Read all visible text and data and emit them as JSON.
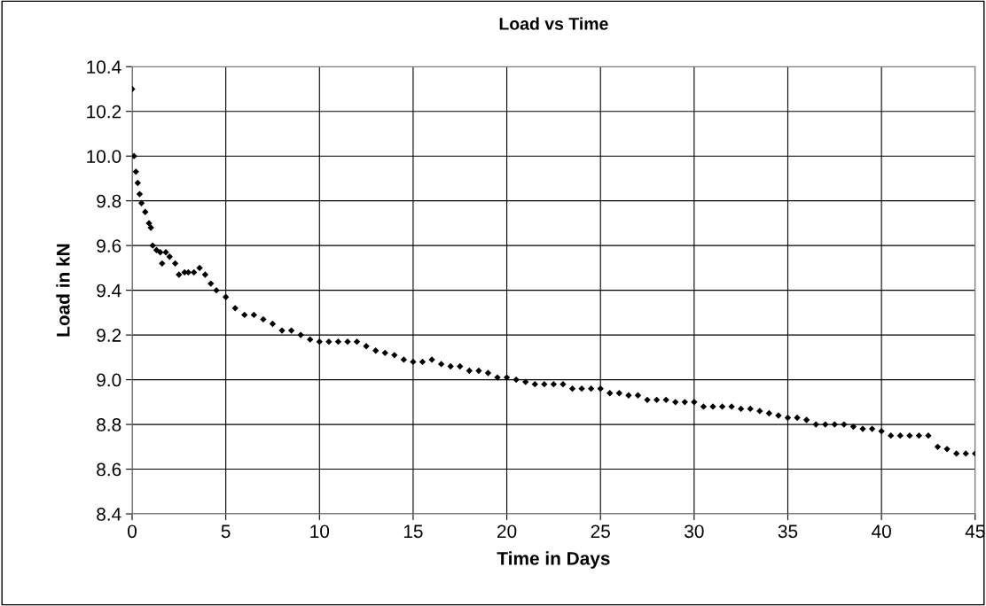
{
  "chart_data": {
    "type": "scatter",
    "title": "Load vs Time",
    "xlabel": "Time in Days",
    "ylabel": "Load in kN",
    "x": [
      0,
      0.1,
      0.2,
      0.3,
      0.4,
      0.5,
      0.7,
      0.9,
      1.0,
      1.1,
      1.3,
      1.5,
      1.6,
      1.8,
      2.0,
      2.3,
      2.5,
      2.8,
      3.0,
      3.3,
      3.6,
      3.9,
      4.2,
      4.5,
      5.0,
      5.5,
      6.0,
      6.5,
      7.0,
      7.5,
      8.0,
      8.5,
      9.0,
      9.5,
      10,
      10.5,
      11,
      11.5,
      12,
      12.5,
      13,
      13.5,
      14,
      14.5,
      15,
      15.5,
      16,
      16.5,
      17,
      17.5,
      18,
      18.5,
      19,
      19.5,
      20,
      20.5,
      21,
      21.5,
      22,
      22.5,
      23,
      23.5,
      24,
      24.5,
      25,
      25.5,
      26,
      26.5,
      27,
      27.5,
      28,
      28.5,
      29,
      29.5,
      30,
      30.5,
      31,
      31.5,
      32,
      32.5,
      33,
      33.5,
      34,
      34.5,
      35,
      35.5,
      36,
      36.5,
      37,
      37.5,
      38,
      38.5,
      39,
      39.5,
      40,
      40.5,
      41,
      41.5,
      42,
      42.5,
      43,
      43.5,
      44,
      44.5,
      45
    ],
    "series": [
      {
        "color": "#000000",
        "values": [
          10.3,
          10.0,
          9.93,
          9.88,
          9.83,
          9.79,
          9.75,
          9.7,
          9.68,
          9.6,
          9.58,
          9.57,
          9.52,
          9.57,
          9.55,
          9.52,
          9.47,
          9.48,
          9.48,
          9.48,
          9.5,
          9.47,
          9.43,
          9.4,
          9.37,
          9.32,
          9.29,
          9.29,
          9.27,
          9.25,
          9.22,
          9.22,
          9.2,
          9.18,
          9.17,
          9.17,
          9.17,
          9.17,
          9.17,
          9.15,
          9.13,
          9.12,
          9.11,
          9.09,
          9.08,
          9.08,
          9.09,
          9.07,
          9.06,
          9.06,
          9.04,
          9.04,
          9.03,
          9.01,
          9.01,
          9.0,
          8.99,
          8.98,
          8.98,
          8.98,
          8.98,
          8.96,
          8.96,
          8.96,
          8.96,
          8.94,
          8.94,
          8.93,
          8.93,
          8.91,
          8.91,
          8.91,
          8.9,
          8.9,
          8.9,
          8.88,
          8.88,
          8.88,
          8.88,
          8.87,
          8.87,
          8.86,
          8.85,
          8.84,
          8.83,
          8.83,
          8.82,
          8.8,
          8.8,
          8.8,
          8.8,
          8.79,
          8.78,
          8.78,
          8.77,
          8.75,
          8.75,
          8.75,
          8.75,
          8.75,
          8.7,
          8.69,
          8.67,
          8.67,
          8.67
        ]
      }
    ],
    "marker": "diamond",
    "grid": true,
    "xlim": [
      0,
      45
    ],
    "ylim": [
      8.4,
      10.4
    ],
    "xticks": [
      0,
      5,
      10,
      15,
      20,
      25,
      30,
      35,
      40,
      45
    ],
    "yticks": [
      8.4,
      8.6,
      8.8,
      {
        "value": 9.0,
        "label": "9.0"
      },
      9.2,
      9.4,
      9.6,
      9.8,
      {
        "value": 10.0,
        "label": "10.0"
      },
      10.2,
      10.4
    ]
  }
}
